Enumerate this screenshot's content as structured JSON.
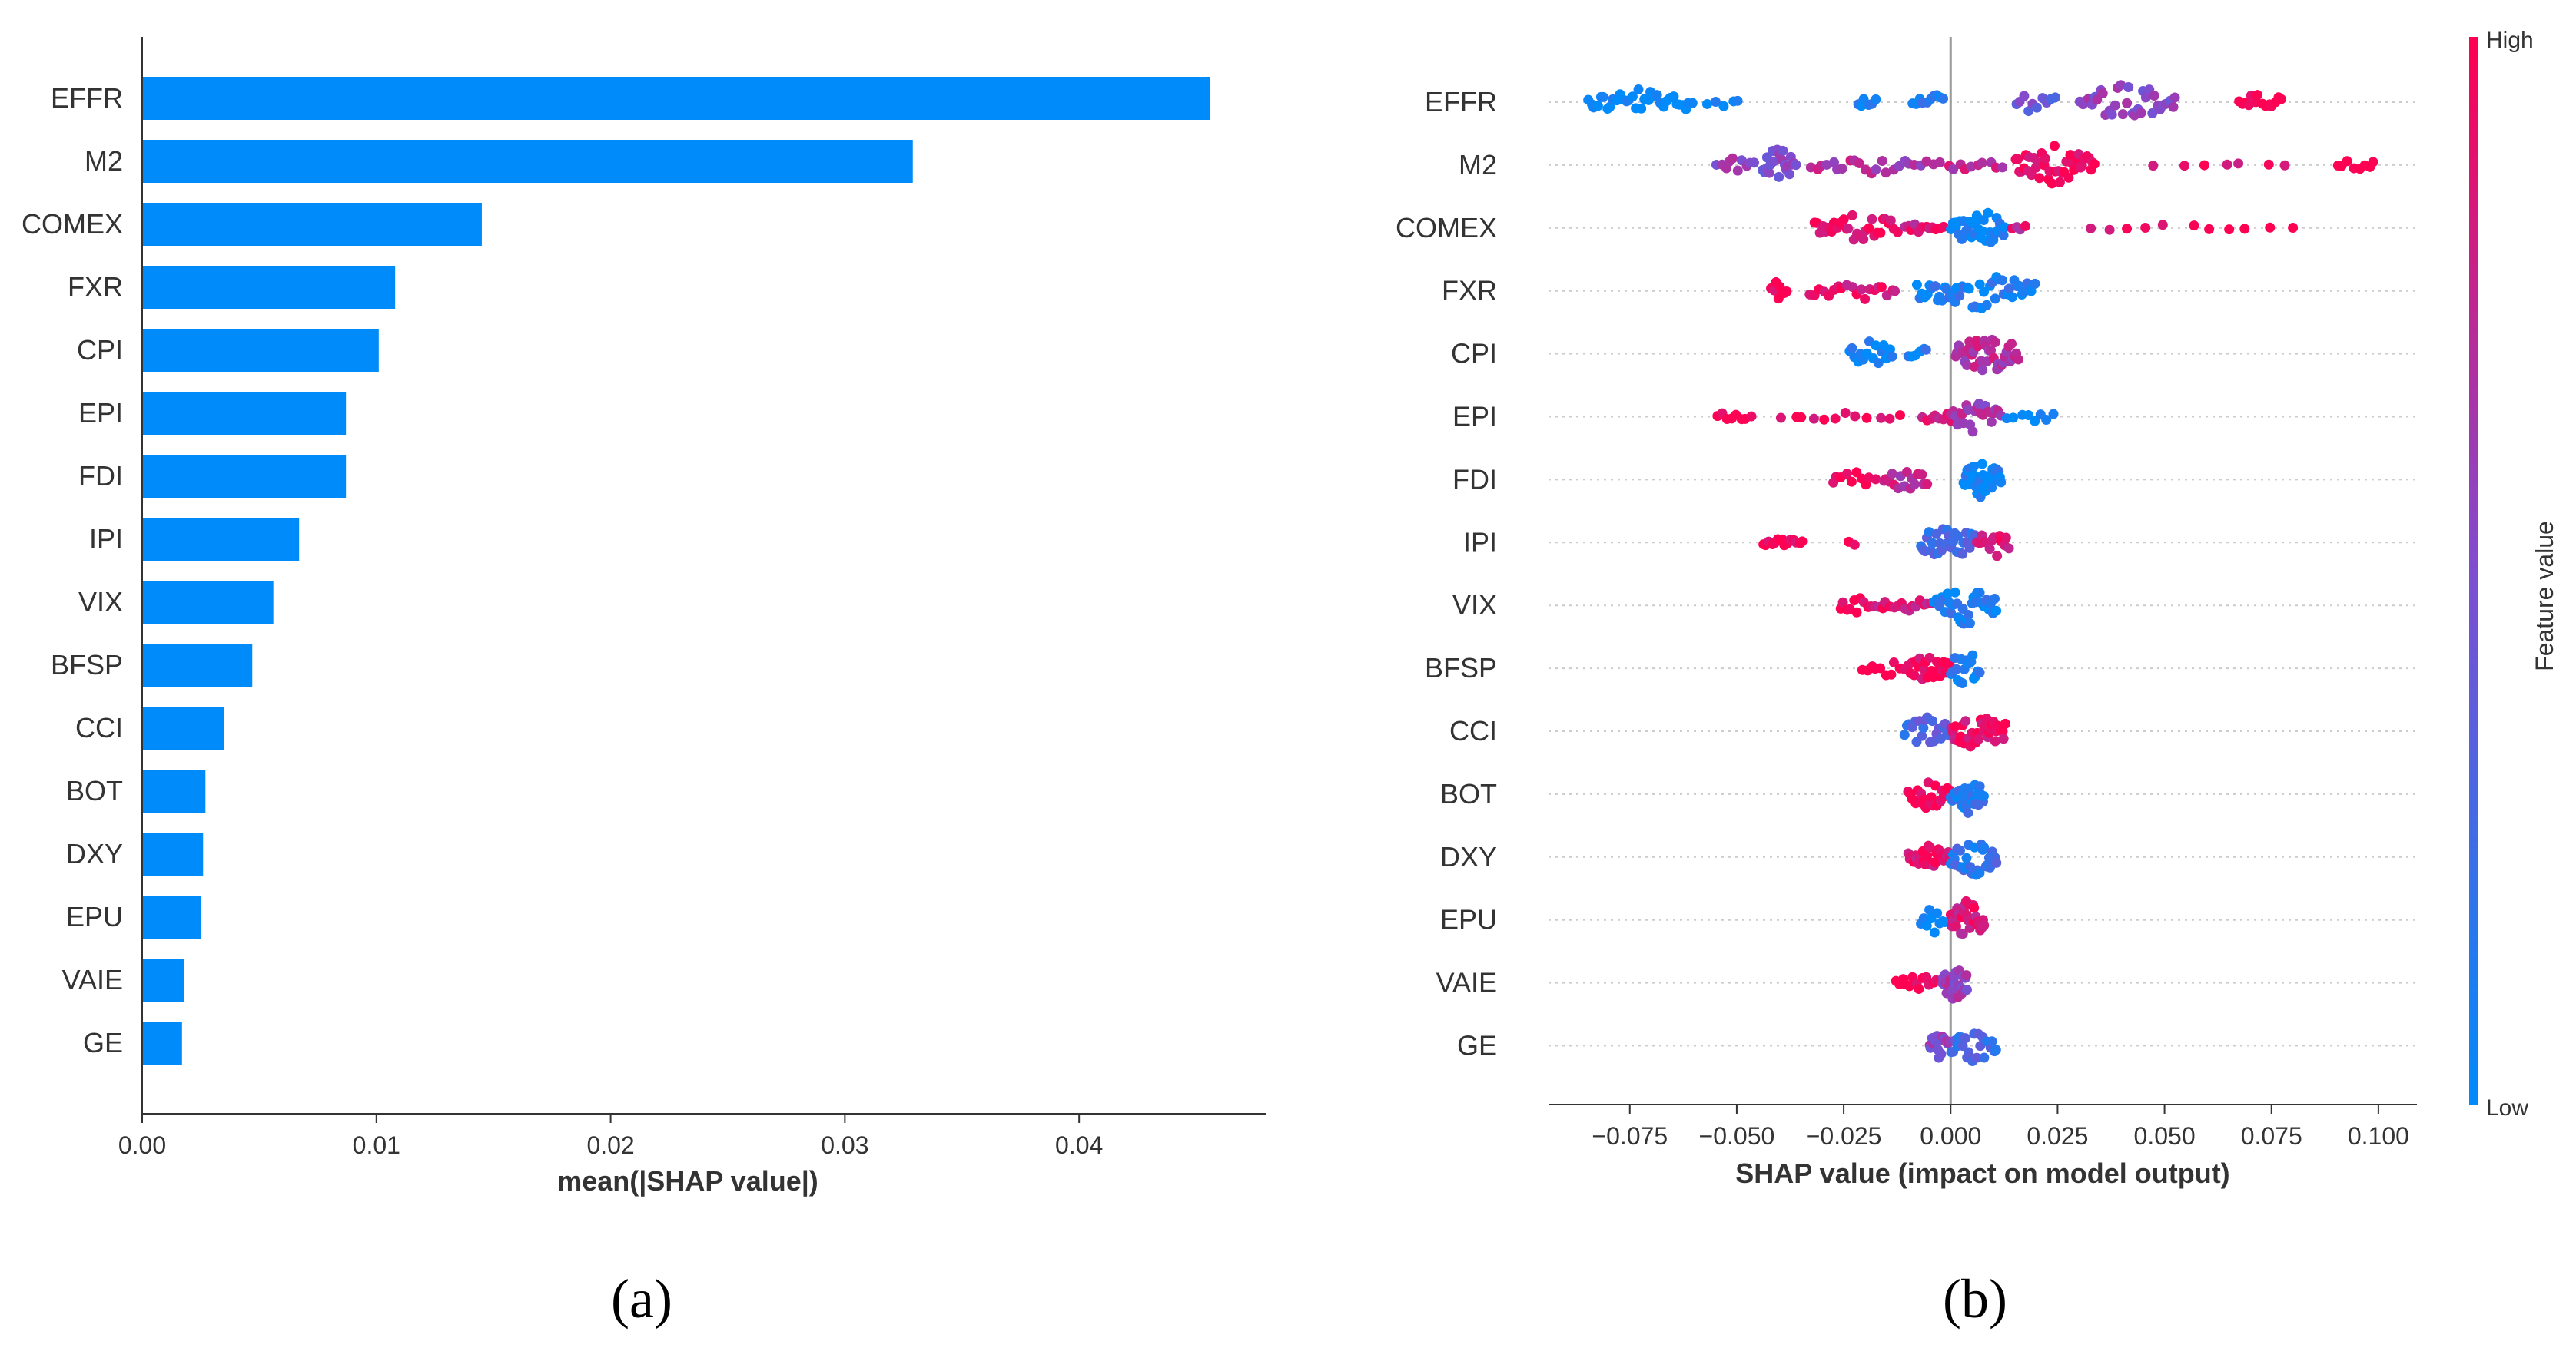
{
  "colors": {
    "bar": "#008bfb",
    "low": "#008bfb",
    "high": "#ff0052",
    "mid": "#7f4dd0",
    "axis": "#333333",
    "grid": "#cccccc"
  },
  "chart_data": [
    {
      "panel": "a",
      "type": "bar",
      "orientation": "horizontal",
      "panel_label": "(a)",
      "xlabel": "mean(|SHAP value|)",
      "ylabel": "",
      "xlim": [
        0,
        0.048
      ],
      "xticks": [
        0.0,
        0.01,
        0.02,
        0.03,
        0.04
      ],
      "xtick_labels": [
        "0.00",
        "0.01",
        "0.02",
        "0.03",
        "0.04"
      ],
      "categories": [
        "EFFR",
        "M2",
        "COMEX",
        "FXR",
        "CPI",
        "EPI",
        "FDI",
        "IPI",
        "VIX",
        "BFSP",
        "CCI",
        "BOT",
        "DXY",
        "EPU",
        "VAIE",
        "GE"
      ],
      "values": [
        0.0456,
        0.0329,
        0.0145,
        0.0108,
        0.0101,
        0.0087,
        0.0087,
        0.0067,
        0.0056,
        0.0047,
        0.0035,
        0.0027,
        0.0026,
        0.0025,
        0.0018,
        0.0017
      ]
    },
    {
      "panel": "b",
      "type": "scatter",
      "subtype": "beeswarm",
      "panel_label": "(b)",
      "xlabel": "SHAP value (impact on model output)",
      "ylabel": "",
      "xlim": [
        -0.094,
        0.109
      ],
      "xticks": [
        -0.075,
        -0.05,
        -0.025,
        0.0,
        0.025,
        0.05,
        0.075,
        0.1
      ],
      "xtick_labels": [
        "−0.075",
        "−0.050",
        "−0.025",
        "0.000",
        "0.025",
        "0.050",
        "0.075",
        "0.100"
      ],
      "colorbar": {
        "label": "Feature value",
        "high_label": "High",
        "low_label": "Low"
      },
      "features": [
        {
          "name": "EFFR",
          "clusters": [
            {
              "min": -0.085,
              "max": -0.06,
              "n": 34,
              "color": 0.0,
              "spread": 0.8
            },
            {
              "min": -0.057,
              "max": -0.048,
              "n": 5,
              "color": 0.05,
              "spread": 0.3
            },
            {
              "min": -0.022,
              "max": -0.017,
              "n": 6,
              "color": 0.05,
              "spread": 0.4
            },
            {
              "min": -0.009,
              "max": -0.001,
              "n": 10,
              "color": 0.1,
              "spread": 0.5
            },
            {
              "min": 0.015,
              "max": 0.025,
              "n": 10,
              "color": 0.4,
              "spread": 0.6
            },
            {
              "min": 0.03,
              "max": 0.053,
              "n": 34,
              "color": 0.55,
              "spread": 1.0
            },
            {
              "min": 0.067,
              "max": 0.078,
              "n": 14,
              "color": 1.0,
              "spread": 0.5
            }
          ]
        },
        {
          "name": "M2",
          "clusters": [
            {
              "min": -0.055,
              "max": -0.045,
              "n": 10,
              "color": 0.6,
              "spread": 0.4
            },
            {
              "min": -0.044,
              "max": -0.036,
              "n": 22,
              "color": 0.5,
              "spread": 1.0
            },
            {
              "min": -0.033,
              "max": -0.005,
              "n": 22,
              "color": 0.7,
              "spread": 0.5
            },
            {
              "min": -0.004,
              "max": 0.013,
              "n": 12,
              "color": 0.75,
              "spread": 0.4
            },
            {
              "min": 0.015,
              "max": 0.034,
              "n": 40,
              "color": 0.9,
              "spread": 1.0
            },
            {
              "min": 0.047,
              "max": 0.082,
              "n": 7,
              "color": 0.9,
              "spread": 0.1
            },
            {
              "min": 0.09,
              "max": 0.1,
              "n": 8,
              "color": 1.0,
              "spread": 0.3
            }
          ]
        },
        {
          "name": "COMEX",
          "clusters": [
            {
              "min": -0.032,
              "max": -0.012,
              "n": 30,
              "color": 0.95,
              "spread": 0.8
            },
            {
              "min": -0.011,
              "max": -0.001,
              "n": 12,
              "color": 0.85,
              "spread": 0.3
            },
            {
              "min": 0.0,
              "max": 0.013,
              "n": 32,
              "color": 0.05,
              "spread": 1.0
            },
            {
              "min": 0.014,
              "max": 0.018,
              "n": 4,
              "color": 0.8,
              "spread": 0.3
            },
            {
              "min": 0.03,
              "max": 0.083,
              "n": 11,
              "color": 0.95,
              "spread": 0.2
            }
          ]
        },
        {
          "name": "FXR",
          "clusters": [
            {
              "min": -0.042,
              "max": -0.038,
              "n": 8,
              "color": 1.0,
              "spread": 0.6
            },
            {
              "min": -0.033,
              "max": -0.012,
              "n": 20,
              "color": 0.9,
              "spread": 0.6
            },
            {
              "min": -0.008,
              "max": 0.02,
              "n": 48,
              "color": 0.1,
              "spread": 1.0
            }
          ]
        },
        {
          "name": "CPI",
          "clusters": [
            {
              "min": -0.024,
              "max": -0.013,
              "n": 16,
              "color": 0.05,
              "spread": 0.7
            },
            {
              "min": -0.01,
              "max": -0.005,
              "n": 6,
              "color": 0.1,
              "spread": 0.4
            },
            {
              "min": 0.001,
              "max": 0.016,
              "n": 40,
              "color": 0.7,
              "spread": 1.0
            }
          ]
        },
        {
          "name": "EPI",
          "clusters": [
            {
              "min": -0.055,
              "max": -0.046,
              "n": 8,
              "color": 1.0,
              "spread": 0.3
            },
            {
              "min": -0.04,
              "max": -0.01,
              "n": 12,
              "color": 0.95,
              "spread": 0.2
            },
            {
              "min": -0.007,
              "max": 0.003,
              "n": 10,
              "color": 0.8,
              "spread": 0.4
            },
            {
              "min": 0.0,
              "max": 0.012,
              "n": 24,
              "color": 0.65,
              "spread": 0.9
            },
            {
              "min": 0.013,
              "max": 0.025,
              "n": 8,
              "color": 0.1,
              "spread": 0.3
            }
          ]
        },
        {
          "name": "FDI",
          "clusters": [
            {
              "min": -0.028,
              "max": -0.017,
              "n": 10,
              "color": 1.0,
              "spread": 0.4
            },
            {
              "min": -0.016,
              "max": -0.005,
              "n": 16,
              "color": 0.75,
              "spread": 0.6
            },
            {
              "min": 0.003,
              "max": 0.012,
              "n": 32,
              "color": 0.05,
              "spread": 1.0
            }
          ]
        },
        {
          "name": "IPI",
          "clusters": [
            {
              "min": -0.044,
              "max": -0.034,
              "n": 14,
              "color": 1.0,
              "spread": 0.3
            },
            {
              "min": -0.024,
              "max": -0.022,
              "n": 2,
              "color": 1.0,
              "spread": 0.2
            },
            {
              "min": -0.007,
              "max": 0.006,
              "n": 30,
              "color": 0.25,
              "spread": 1.0
            },
            {
              "min": 0.006,
              "max": 0.014,
              "n": 14,
              "color": 0.9,
              "spread": 0.8
            }
          ]
        },
        {
          "name": "VIX",
          "clusters": [
            {
              "min": -0.026,
              "max": -0.018,
              "n": 10,
              "color": 1.0,
              "spread": 0.5
            },
            {
              "min": -0.018,
              "max": -0.004,
              "n": 16,
              "color": 0.85,
              "spread": 0.4
            },
            {
              "min": -0.004,
              "max": 0.011,
              "n": 34,
              "color": 0.1,
              "spread": 1.0
            }
          ]
        },
        {
          "name": "BFSP",
          "clusters": [
            {
              "min": -0.021,
              "max": -0.01,
              "n": 10,
              "color": 1.0,
              "spread": 0.4
            },
            {
              "min": -0.01,
              "max": 0.0,
              "n": 22,
              "color": 0.95,
              "spread": 0.7
            },
            {
              "min": 0.0,
              "max": 0.007,
              "n": 18,
              "color": 0.1,
              "spread": 1.0
            }
          ]
        },
        {
          "name": "CCI",
          "clusters": [
            {
              "min": -0.011,
              "max": 0.0,
              "n": 22,
              "color": 0.3,
              "spread": 0.8
            },
            {
              "min": 0.0,
              "max": 0.013,
              "n": 38,
              "color": 0.9,
              "spread": 1.0
            }
          ]
        },
        {
          "name": "BOT",
          "clusters": [
            {
              "min": -0.01,
              "max": 0.0,
              "n": 24,
              "color": 1.0,
              "spread": 0.8
            },
            {
              "min": 0.0,
              "max": 0.008,
              "n": 30,
              "color": 0.15,
              "spread": 1.0
            }
          ]
        },
        {
          "name": "DXY",
          "clusters": [
            {
              "min": -0.01,
              "max": 0.0,
              "n": 30,
              "color": 0.9,
              "spread": 0.6
            },
            {
              "min": 0.0,
              "max": 0.011,
              "n": 30,
              "color": 0.2,
              "spread": 1.0
            }
          ]
        },
        {
          "name": "EPU",
          "clusters": [
            {
              "min": -0.007,
              "max": -0.001,
              "n": 10,
              "color": 0.0,
              "spread": 0.7
            },
            {
              "min": 0.0,
              "max": 0.008,
              "n": 34,
              "color": 0.85,
              "spread": 1.0
            }
          ]
        },
        {
          "name": "VAIE",
          "clusters": [
            {
              "min": -0.013,
              "max": -0.002,
              "n": 14,
              "color": 1.0,
              "spread": 0.4
            },
            {
              "min": -0.002,
              "max": 0.004,
              "n": 30,
              "color": 0.6,
              "spread": 1.0
            }
          ]
        },
        {
          "name": "GE",
          "clusters": [
            {
              "min": -0.005,
              "max": 0.0,
              "n": 18,
              "color": 0.55,
              "spread": 0.8
            },
            {
              "min": 0.0,
              "max": 0.011,
              "n": 24,
              "color": 0.25,
              "spread": 0.9
            }
          ]
        }
      ]
    }
  ]
}
